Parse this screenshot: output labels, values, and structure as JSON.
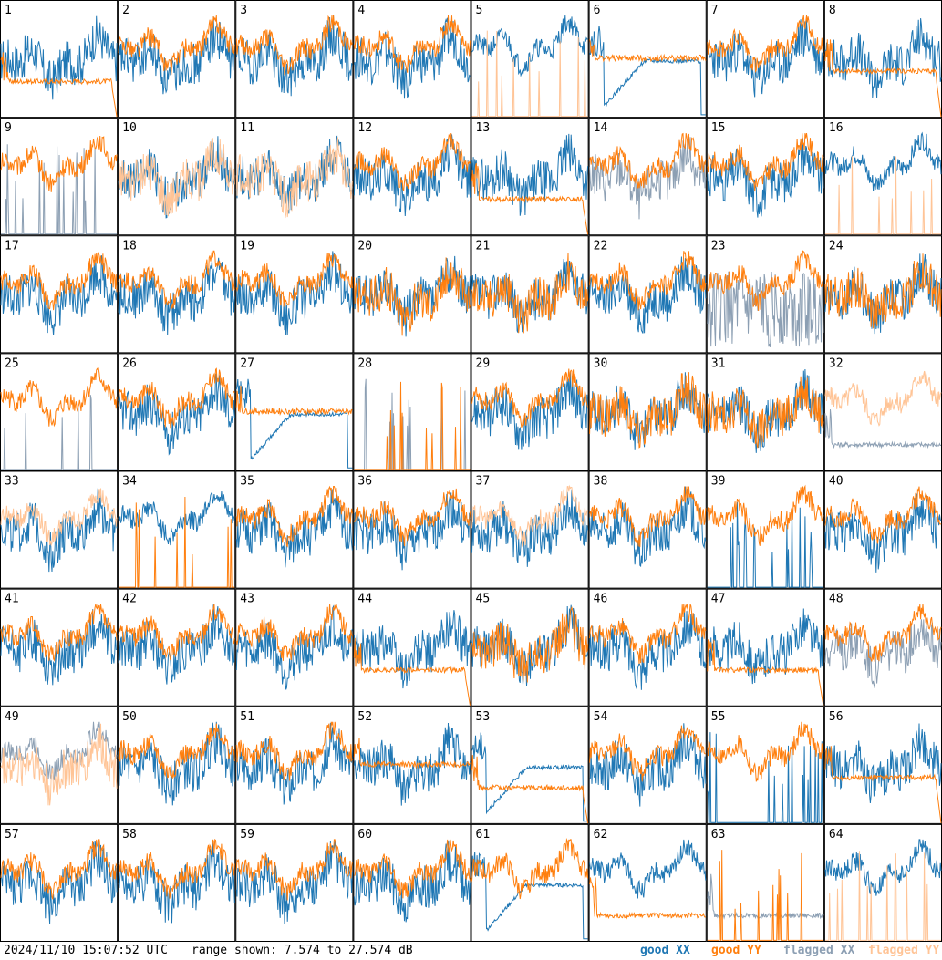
{
  "footer": {
    "timestamp": "2024/11/10 15:07:52 UTC",
    "range": "range shown: 7.574 to 27.574 dB"
  },
  "legend": [
    {
      "label": "good XX",
      "color": "#1f77b4"
    },
    {
      "label": "good YY",
      "color": "#ff7f0e"
    },
    {
      "label": "flagged XX",
      "color": "#8c9fb3"
    },
    {
      "label": "flagged YY",
      "color": "#ffc496"
    }
  ],
  "chart_data": {
    "type": "line",
    "grid_rows": 8,
    "grid_cols": 8,
    "ylim": [
      7.574,
      27.574
    ],
    "y_unit": "dB",
    "series_styles": {
      "good_xx": "#1f77b4",
      "good_yy": "#ff7f0e",
      "flagged_xx": "#8c9fb3",
      "flagged_yy": "#ffc496"
    },
    "panels": [
      {
        "label": "1",
        "xx": "good",
        "yy": "good",
        "xx_shape": "typical",
        "yy_shape": "flat_low_dropout"
      },
      {
        "label": "2",
        "xx": "good",
        "yy": "good",
        "xx_shape": "typical",
        "yy_shape": "typical_high"
      },
      {
        "label": "3",
        "xx": "good",
        "yy": "good",
        "xx_shape": "typical",
        "yy_shape": "typical_high"
      },
      {
        "label": "4",
        "xx": "good",
        "yy": "good",
        "xx_shape": "typical",
        "yy_shape": "typical_high"
      },
      {
        "label": "5",
        "xx": "good",
        "yy": "flagged",
        "xx_shape": "typical_high",
        "yy_shape": "spikes"
      },
      {
        "label": "6",
        "xx": "good",
        "yy": "good",
        "xx_shape": "dip_recover",
        "yy_shape": "flat_high"
      },
      {
        "label": "7",
        "xx": "good",
        "yy": "good",
        "xx_shape": "typical",
        "yy_shape": "typical_high"
      },
      {
        "label": "8",
        "xx": "good",
        "yy": "good",
        "xx_shape": "typical",
        "yy_shape": "flat_mid_dropout"
      },
      {
        "label": "9",
        "xx": "flagged",
        "yy": "good",
        "xx_shape": "spikes",
        "yy_shape": "typical_high"
      },
      {
        "label": "10",
        "xx": "good",
        "yy": "flagged",
        "xx_shape": "typical",
        "yy_shape": "typical"
      },
      {
        "label": "11",
        "xx": "good",
        "yy": "flagged",
        "xx_shape": "typical",
        "yy_shape": "typical"
      },
      {
        "label": "12",
        "xx": "good",
        "yy": "good",
        "xx_shape": "typical",
        "yy_shape": "typical_high"
      },
      {
        "label": "13",
        "xx": "good",
        "yy": "good",
        "xx_shape": "typical",
        "yy_shape": "flat_low_dropout"
      },
      {
        "label": "14",
        "xx": "flagged",
        "yy": "good",
        "xx_shape": "typical",
        "yy_shape": "typical_high"
      },
      {
        "label": "15",
        "xx": "good",
        "yy": "good",
        "xx_shape": "typical",
        "yy_shape": "typical_high"
      },
      {
        "label": "16",
        "xx": "good",
        "yy": "flagged",
        "xx_shape": "typical_high",
        "yy_shape": "spikes"
      },
      {
        "label": "17",
        "xx": "good",
        "yy": "good",
        "xx_shape": "typical",
        "yy_shape": "typical_high"
      },
      {
        "label": "18",
        "xx": "good",
        "yy": "good",
        "xx_shape": "typical",
        "yy_shape": "typical_high"
      },
      {
        "label": "19",
        "xx": "good",
        "yy": "good",
        "xx_shape": "typical",
        "yy_shape": "typical_high"
      },
      {
        "label": "20",
        "xx": "good",
        "yy": "good",
        "xx_shape": "typical",
        "yy_shape": "typical"
      },
      {
        "label": "21",
        "xx": "good",
        "yy": "good",
        "xx_shape": "typical",
        "yy_shape": "typical"
      },
      {
        "label": "22",
        "xx": "good",
        "yy": "good",
        "xx_shape": "typical",
        "yy_shape": "typical_high"
      },
      {
        "label": "23",
        "xx": "flagged",
        "yy": "good",
        "xx_shape": "noisy_deep",
        "yy_shape": "typical_high"
      },
      {
        "label": "24",
        "xx": "good",
        "yy": "good",
        "xx_shape": "typical",
        "yy_shape": "typical"
      },
      {
        "label": "25",
        "xx": "flagged",
        "yy": "good",
        "xx_shape": "spikes",
        "yy_shape": "typical_high"
      },
      {
        "label": "26",
        "xx": "good",
        "yy": "good",
        "xx_shape": "typical",
        "yy_shape": "typical_high"
      },
      {
        "label": "27",
        "xx": "good",
        "yy": "good",
        "xx_shape": "dip_recover",
        "yy_shape": "flat_high"
      },
      {
        "label": "28",
        "xx": "flagged",
        "yy": "good",
        "xx_shape": "spikes",
        "yy_shape": "spikes"
      },
      {
        "label": "29",
        "xx": "good",
        "yy": "good",
        "xx_shape": "typical",
        "yy_shape": "typical_high"
      },
      {
        "label": "30",
        "xx": "good",
        "yy": "good",
        "xx_shape": "typical",
        "yy_shape": "typical"
      },
      {
        "label": "31",
        "xx": "good",
        "yy": "good",
        "xx_shape": "typical",
        "yy_shape": "typical"
      },
      {
        "label": "32",
        "xx": "flagged",
        "yy": "flagged",
        "xx_shape": "flat_low",
        "yy_shape": "typical_high"
      },
      {
        "label": "33",
        "xx": "good",
        "yy": "flagged",
        "xx_shape": "typical",
        "yy_shape": "typical_high"
      },
      {
        "label": "34",
        "xx": "good",
        "yy": "good",
        "xx_shape": "typical_high",
        "yy_shape": "spikes"
      },
      {
        "label": "35",
        "xx": "good",
        "yy": "good",
        "xx_shape": "typical",
        "yy_shape": "typical_high"
      },
      {
        "label": "36",
        "xx": "good",
        "yy": "good",
        "xx_shape": "typical",
        "yy_shape": "typical_high"
      },
      {
        "label": "37",
        "xx": "good",
        "yy": "flagged",
        "xx_shape": "typical",
        "yy_shape": "typical_high"
      },
      {
        "label": "38",
        "xx": "good",
        "yy": "good",
        "xx_shape": "typical",
        "yy_shape": "typical_high"
      },
      {
        "label": "39",
        "xx": "good",
        "yy": "good",
        "xx_shape": "spikes",
        "yy_shape": "typical_high"
      },
      {
        "label": "40",
        "xx": "good",
        "yy": "good",
        "xx_shape": "typical",
        "yy_shape": "typical_high"
      },
      {
        "label": "41",
        "xx": "good",
        "yy": "good",
        "xx_shape": "typical",
        "yy_shape": "typical_high"
      },
      {
        "label": "42",
        "xx": "good",
        "yy": "good",
        "xx_shape": "typical",
        "yy_shape": "typical_high"
      },
      {
        "label": "43",
        "xx": "good",
        "yy": "good",
        "xx_shape": "typical",
        "yy_shape": "typical_high"
      },
      {
        "label": "44",
        "xx": "good",
        "yy": "good",
        "xx_shape": "typical",
        "yy_shape": "flat_low_dropout"
      },
      {
        "label": "45",
        "xx": "good",
        "yy": "good",
        "xx_shape": "typical",
        "yy_shape": "typical"
      },
      {
        "label": "46",
        "xx": "good",
        "yy": "good",
        "xx_shape": "typical",
        "yy_shape": "typical_high"
      },
      {
        "label": "47",
        "xx": "good",
        "yy": "good",
        "xx_shape": "typical",
        "yy_shape": "flat_low_dropout"
      },
      {
        "label": "48",
        "xx": "flagged",
        "yy": "good",
        "xx_shape": "typical",
        "yy_shape": "typical_high"
      },
      {
        "label": "49",
        "xx": "flagged",
        "yy": "flagged",
        "xx_shape": "typical_high",
        "yy_shape": "typical"
      },
      {
        "label": "50",
        "xx": "good",
        "yy": "good",
        "xx_shape": "typical",
        "yy_shape": "typical_high"
      },
      {
        "label": "51",
        "xx": "good",
        "yy": "good",
        "xx_shape": "typical",
        "yy_shape": "typical_high"
      },
      {
        "label": "52",
        "xx": "good",
        "yy": "good",
        "xx_shape": "typical",
        "yy_shape": "flat_high"
      },
      {
        "label": "53",
        "xx": "good",
        "yy": "good",
        "xx_shape": "dip_recover",
        "yy_shape": "flat_low_dropout"
      },
      {
        "label": "54",
        "xx": "good",
        "yy": "good",
        "xx_shape": "typical",
        "yy_shape": "typical_high"
      },
      {
        "label": "55",
        "xx": "good",
        "yy": "good",
        "xx_shape": "spikes",
        "yy_shape": "typical_high"
      },
      {
        "label": "56",
        "xx": "good",
        "yy": "good",
        "xx_shape": "typical",
        "yy_shape": "flat_mid_dropout"
      },
      {
        "label": "57",
        "xx": "good",
        "yy": "good",
        "xx_shape": "typical",
        "yy_shape": "typical_high"
      },
      {
        "label": "58",
        "xx": "good",
        "yy": "good",
        "xx_shape": "typical",
        "yy_shape": "typical_high"
      },
      {
        "label": "59",
        "xx": "good",
        "yy": "good",
        "xx_shape": "typical",
        "yy_shape": "typical_high"
      },
      {
        "label": "60",
        "xx": "good",
        "yy": "good",
        "xx_shape": "typical",
        "yy_shape": "typical_high"
      },
      {
        "label": "61",
        "xx": "good",
        "yy": "good",
        "xx_shape": "dip_recover",
        "yy_shape": "typical_high"
      },
      {
        "label": "62",
        "xx": "good",
        "yy": "good",
        "xx_shape": "typical_high",
        "yy_shape": "flat_low"
      },
      {
        "label": "63",
        "xx": "flagged",
        "yy": "good",
        "xx_shape": "flat_low",
        "yy_shape": "spikes"
      },
      {
        "label": "64",
        "xx": "good",
        "yy": "flagged",
        "xx_shape": "typical_high",
        "yy_shape": "spikes"
      }
    ]
  }
}
